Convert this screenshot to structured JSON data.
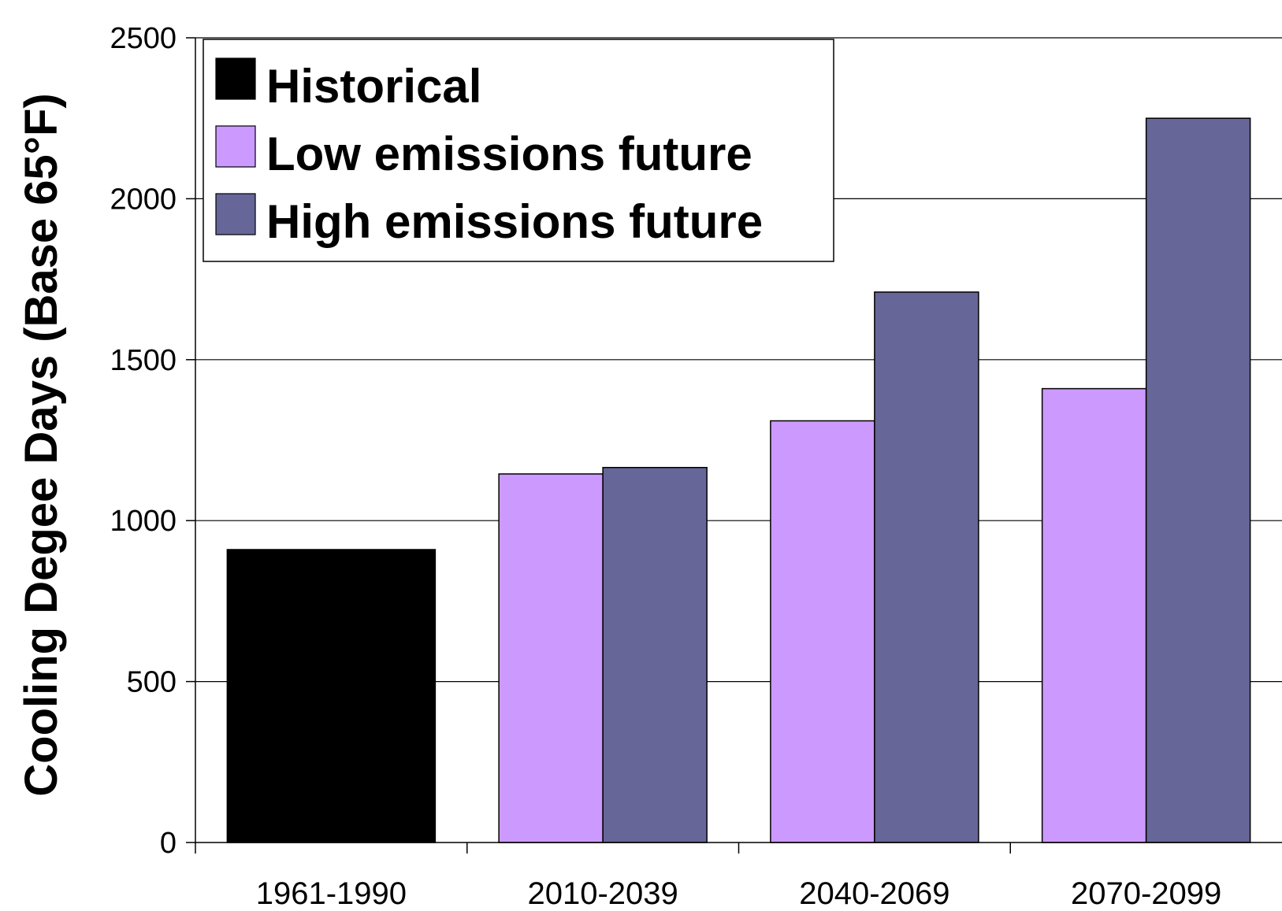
{
  "chart_data": {
    "type": "bar",
    "ylabel": "Cooling Degee Days (Base 65°F)",
    "xlabel": "",
    "ylim": [
      0,
      2500
    ],
    "yticks": [
      0,
      500,
      1000,
      1500,
      2000,
      2500
    ],
    "grid": true,
    "legend_position": "top-left",
    "categories": [
      "1961-1990",
      "2010-2039",
      "2040-2069",
      "2070-2099"
    ],
    "series": [
      {
        "name": "Historical",
        "color": "#000000",
        "values": [
          910,
          null,
          null,
          null
        ]
      },
      {
        "name": "Low emissions future",
        "color": "#cc99ff",
        "values": [
          null,
          1145,
          1310,
          1410
        ]
      },
      {
        "name": "High emissions future",
        "color": "#666699",
        "values": [
          null,
          1165,
          1710,
          2250
        ]
      }
    ]
  }
}
